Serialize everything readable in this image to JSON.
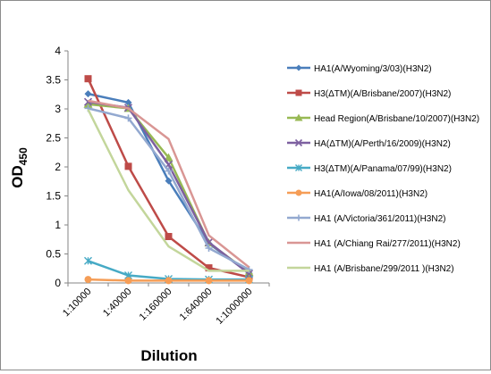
{
  "chart_data": {
    "type": "line",
    "title": "",
    "xlabel": "Dilution",
    "ylabel": "OD",
    "ylabel_subscript": "450",
    "categories": [
      "1:10000",
      "1:40000",
      "1:160000",
      "1:640000",
      "1:1000000"
    ],
    "ylim": [
      0,
      4
    ],
    "yticks": [
      "0",
      "0.5",
      "1",
      "1.5",
      "2",
      "2.5",
      "3",
      "3.5",
      "4"
    ],
    "grid": false,
    "legend_position": "right",
    "series": [
      {
        "name": "HA1(A/Wyoming/3/03)(H3N2)",
        "color": "#4a7ebb",
        "marker": "diamond",
        "values": [
          3.26,
          3.11,
          1.76,
          0.68,
          0.17
        ]
      },
      {
        "name": "H3(ΔTM)(A/Brisbane/2007)(H3N2)",
        "color": "#be4b48",
        "marker": "square",
        "values": [
          3.52,
          2.01,
          0.8,
          0.26,
          0.1
        ]
      },
      {
        "name": "Head Region(A/Brisbane/10/2007)(H3N2)",
        "color": "#98b954",
        "marker": "triangle",
        "values": [
          3.08,
          3.01,
          2.16,
          0.69,
          0.18
        ]
      },
      {
        "name": "HA(ΔTM)(A/Perth/16/2009)(H3N2)",
        "color": "#7d60a0",
        "marker": "x",
        "values": [
          3.12,
          3.02,
          2.04,
          0.7,
          0.16
        ]
      },
      {
        "name": "H3(ΔTM)(A/Panama/07/99)(H3N2)",
        "color": "#46aac5",
        "marker": "star",
        "values": [
          0.38,
          0.13,
          0.07,
          0.06,
          0.06
        ]
      },
      {
        "name": "HA1(A/Iowa/08/2011)(H3N2)",
        "color": "#f59d56",
        "marker": "circle",
        "values": [
          0.06,
          0.04,
          0.04,
          0.04,
          0.04
        ]
      },
      {
        "name": "HA1 (A/Victoria/361/2011)(H3N2)",
        "color": "#93a9d0",
        "marker": "plus",
        "values": [
          3.01,
          2.84,
          1.93,
          0.6,
          0.23
        ]
      },
      {
        "name": "HA1 (A/Chiang Rai/277/2011)(H3N2)",
        "color": "#d99694",
        "marker": "line",
        "values": [
          3.14,
          3.01,
          2.48,
          0.82,
          0.27
        ]
      },
      {
        "name": "HA1 (A/Brisbane/299/2011 )(H3N2)",
        "color": "#c3d69b",
        "marker": "line",
        "values": [
          2.99,
          1.6,
          0.63,
          0.21,
          0.21
        ]
      }
    ]
  }
}
